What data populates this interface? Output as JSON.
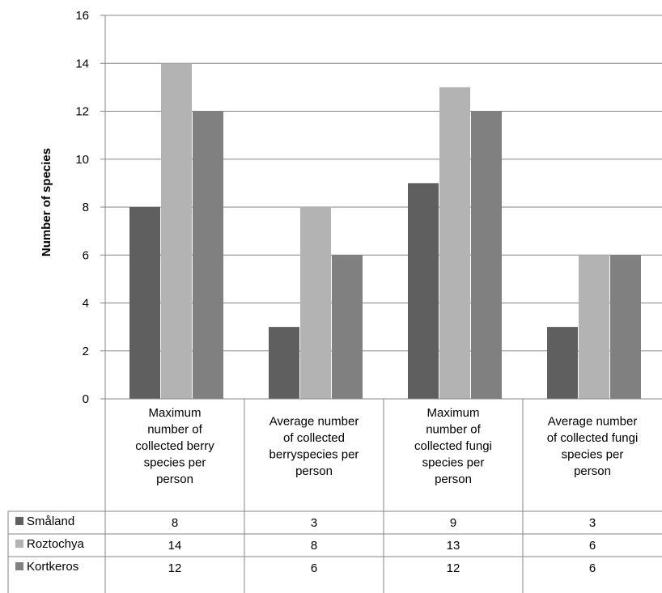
{
  "chart_data": {
    "type": "bar",
    "ylabel": "Number of species",
    "xlabel": "",
    "ylim": [
      0,
      16
    ],
    "yticks": [
      "0",
      "2",
      "4",
      "6",
      "8",
      "10",
      "12",
      "14",
      "16"
    ],
    "grid": "horizontal",
    "legend": "data-table-left",
    "categories": [
      [
        "Maximum",
        "number of",
        "collected berry",
        "species per",
        "person"
      ],
      [
        "Average number",
        "of collected",
        "berryspecies per",
        "person"
      ],
      [
        "Maximum",
        "number of",
        "collected fungi",
        "species per",
        "person"
      ],
      [
        "Average number",
        "of collected fungi",
        "species per",
        "person"
      ]
    ],
    "series": [
      {
        "name": "Småland",
        "color": "#5f5f5f",
        "values": [
          8,
          3,
          9,
          3
        ]
      },
      {
        "name": "Roztochya",
        "color": "#b3b3b3",
        "values": [
          14,
          8,
          13,
          6
        ]
      },
      {
        "name": "Kortkeros",
        "color": "#808080",
        "values": [
          12,
          6,
          12,
          6
        ]
      }
    ]
  }
}
